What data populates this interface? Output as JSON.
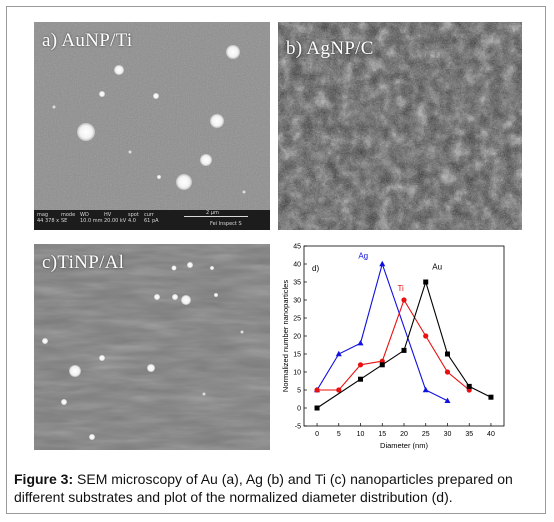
{
  "panels": {
    "a": {
      "label": "a) AuNP/Ti",
      "infobar": [
        {
          "k": "mag",
          "v": "44 378 x"
        },
        {
          "k": "mode",
          "v": "SE"
        },
        {
          "k": "WD",
          "v": "10.0 mm"
        },
        {
          "k": "HV",
          "v": "20.00 kV"
        },
        {
          "k": "spot",
          "v": "4.0"
        },
        {
          "k": "curr",
          "v": "61 pA"
        }
      ],
      "scale_label": "2 μm",
      "instrument": "Fei Inspect S"
    },
    "b": {
      "label": "b) AgNP/C"
    },
    "c": {
      "label": "c)TiNP/Al"
    }
  },
  "chart_data": {
    "type": "line",
    "panel_label": "d)",
    "xlabel": "Diameter (nm)",
    "ylabel": "Normalized number nanoparticles",
    "xlim": [
      -3,
      43
    ],
    "ylim": [
      -5,
      45
    ],
    "xticks": [
      0,
      5,
      10,
      15,
      20,
      25,
      30,
      35,
      40
    ],
    "yticks": [
      -5,
      0,
      5,
      10,
      15,
      20,
      25,
      30,
      35,
      40,
      45
    ],
    "series": [
      {
        "name": "Ag",
        "color": "#1010e0",
        "marker": "triangle",
        "x": [
          0,
          5,
          10,
          15,
          25,
          30
        ],
        "y": [
          5,
          15,
          18,
          40,
          5,
          2
        ]
      },
      {
        "name": "Ti",
        "color": "#e81010",
        "marker": "circle",
        "x": [
          0,
          5,
          10,
          15,
          20,
          25,
          30,
          35
        ],
        "y": [
          5,
          5,
          12,
          13,
          30,
          20,
          10,
          5
        ]
      },
      {
        "name": "Au",
        "color": "#000000",
        "marker": "square",
        "x": [
          0,
          10,
          15,
          20,
          25,
          30,
          35,
          40
        ],
        "y": [
          0,
          8,
          12,
          16,
          35,
          15,
          6,
          3
        ]
      }
    ]
  },
  "caption": {
    "bold": "Figure 3:",
    "text": " SEM microscopy of Au (a), Ag (b) and Ti (c) nanoparticles prepared on different substrates and plot of the normalized diameter distribution (d)."
  }
}
